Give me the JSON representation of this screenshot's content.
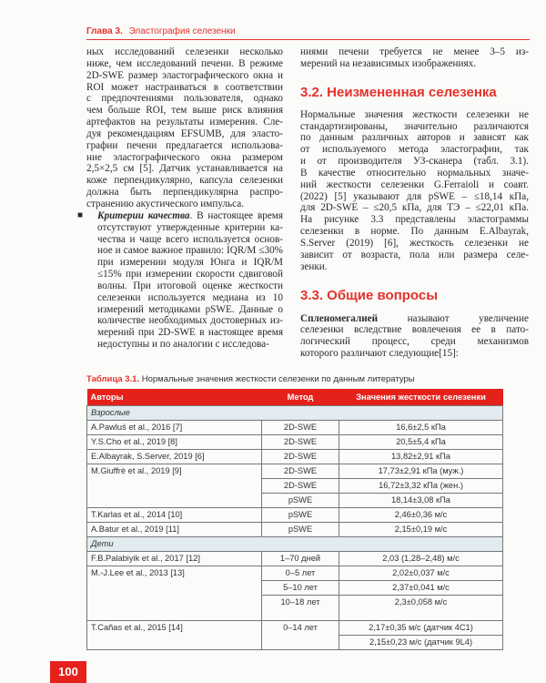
{
  "running_head": {
    "chapter": "Глава 3.",
    "title": "Эластография селезенки"
  },
  "left": {
    "p1": [
      "ных исследований селезенки несколько",
      "ниже, чем исследований печени. В режиме",
      "2D-SWE размер эластографического окна и",
      "ROI может настраиваться в соответствии",
      "с предпочтениями пользователя, однако",
      "чем больше ROI, тем выше риск влияния",
      "артефактов на результаты измерения. Сле-",
      "дуя рекомендациям EFSUMB, для эласто-",
      "графии печени предлагается использова-",
      "ние эластографического окна размером",
      "2,5×2,5 см [5]. Датчик устанавливается на",
      "коже перпендикулярно, капсула селезенки",
      "должна быть перпендикулярна распро-",
      "странению акустического импульса."
    ],
    "bullet": {
      "term": "Критерии качества",
      "first_rest": ". В настоящее время",
      "lines": [
        "отсутствуют утвержденные критерии ка-",
        "чества и чаще всего используется основ-",
        "ное и самое важное правило: IQR/M ≤30%",
        "при измерении модуля Юнга и IQR/M",
        "≤15% при измерении скорости сдвиговой",
        "волны. При итоговой оценке жесткости",
        "селезенки используется медиана из 10",
        "измерений методиками pSWE. Данные о",
        "количестве необходимых достоверных из-",
        "мерений при 2D-SWE в настоящее время",
        "недоступны и по аналогии с исследова-"
      ]
    }
  },
  "right": {
    "cont": [
      "ниями печени требуется не менее 3–5 из-",
      "мерений на независимых изображениях."
    ],
    "h_3_2": "3.2. Неизмененная селезенка",
    "p_3_2": [
      "Нормальные значения жесткости селезенки не",
      "стандартизированы, значительно различаются",
      "по данным различных авторов и зависят как",
      "от используемого метода эластографии, так",
      "и от производителя УЗ-сканера (табл. 3.1).",
      "В качестве относительно нормальных значе-",
      "ний жесткости селезенки G.Ferraioli и соавт.",
      "(2022) [5] указывают для pSWE – ≤18,14 кПа,",
      "для 2D-SWE – ≤20,5 кПа, для ТЭ – ≤22,01 кПа.",
      "На рисунке 3.3 представлены эластограммы",
      "селезенки в норме. По данным E.Albayrak,",
      "S.Server (2019) [6], жесткость селезенки не",
      "зависит от возраста, пола или размера селе-",
      "зенки."
    ],
    "h_3_3": "3.3. Общие вопросы",
    "p_3_3": {
      "term": "Спленомегалией",
      "first_rest": " называют увеличение",
      "lines": [
        "селезенки вследствие вовлечения ее в пато-",
        "логический процесс, среди механизмов",
        "которого различают следующие[15]:"
      ]
    }
  },
  "table": {
    "caption_label": "Таблица 3.1.",
    "caption_text": "Нормальные значения жесткости селезенки по данным литературы",
    "headers": [
      "Авторы",
      "Метод",
      "Значения жесткости селезенки"
    ],
    "group_adults": "Взрослые",
    "group_children": "Дети",
    "rows": [
      {
        "author": "A.Pawluś et al., 2016 [7]",
        "method": "2D-SWE",
        "value": "16,6±2,5 кПа"
      },
      {
        "author": "Y.S.Cho et al., 2019 [8]",
        "method": "2D-SWE",
        "value": "20,5±5,4 кПа"
      },
      {
        "author": "E.Albayrak, S.Server, 2019 [6]",
        "method": "2D-SWE",
        "value": "13,82±2,91 кПа"
      },
      {
        "author": "M.Giuffrè et al., 2019 [9]",
        "method": "2D-SWE",
        "value": "17,73±2,91 кПа (муж.)"
      },
      {
        "method": "2D-SWE",
        "value": "16,72±3,32 кПа (жен.)"
      },
      {
        "method": "pSWE",
        "value": "18,14±3,08 кПа"
      },
      {
        "author": "T.Karlas et al., 2014 [10]",
        "method": "pSWE",
        "value": "2,46±0,36 м/с"
      },
      {
        "author": "A.Batur et al., 2019 [11]",
        "method": "pSWE",
        "value": "2,15±0,19 м/с"
      },
      {
        "author": "F.B.Palabiyik et al., 2017 [12]",
        "method": "1–70 дней",
        "value": "2,03 (1,28–2,48) м/с"
      },
      {
        "author": "M.-J.Lee et al., 2013 [13]",
        "method": "0–5 лет",
        "value": "2,02±0,037 м/с"
      },
      {
        "method": "5–10 лет",
        "value": "2,37±0,041 м/с"
      },
      {
        "method": "10–18 лет",
        "value": "2,3±0,058 м/с"
      },
      {
        "author": "T.Cañas et al., 2015 [14]",
        "method": "0–14 лет",
        "value": "2,17±0,35 м/с (датчик 4C1)"
      },
      {
        "value": "2,15±0,23 м/с (датчик 9L4)"
      }
    ]
  },
  "page_number": "100",
  "colors": {
    "accent": "#e5211c",
    "group_row": "#e2ebef"
  }
}
